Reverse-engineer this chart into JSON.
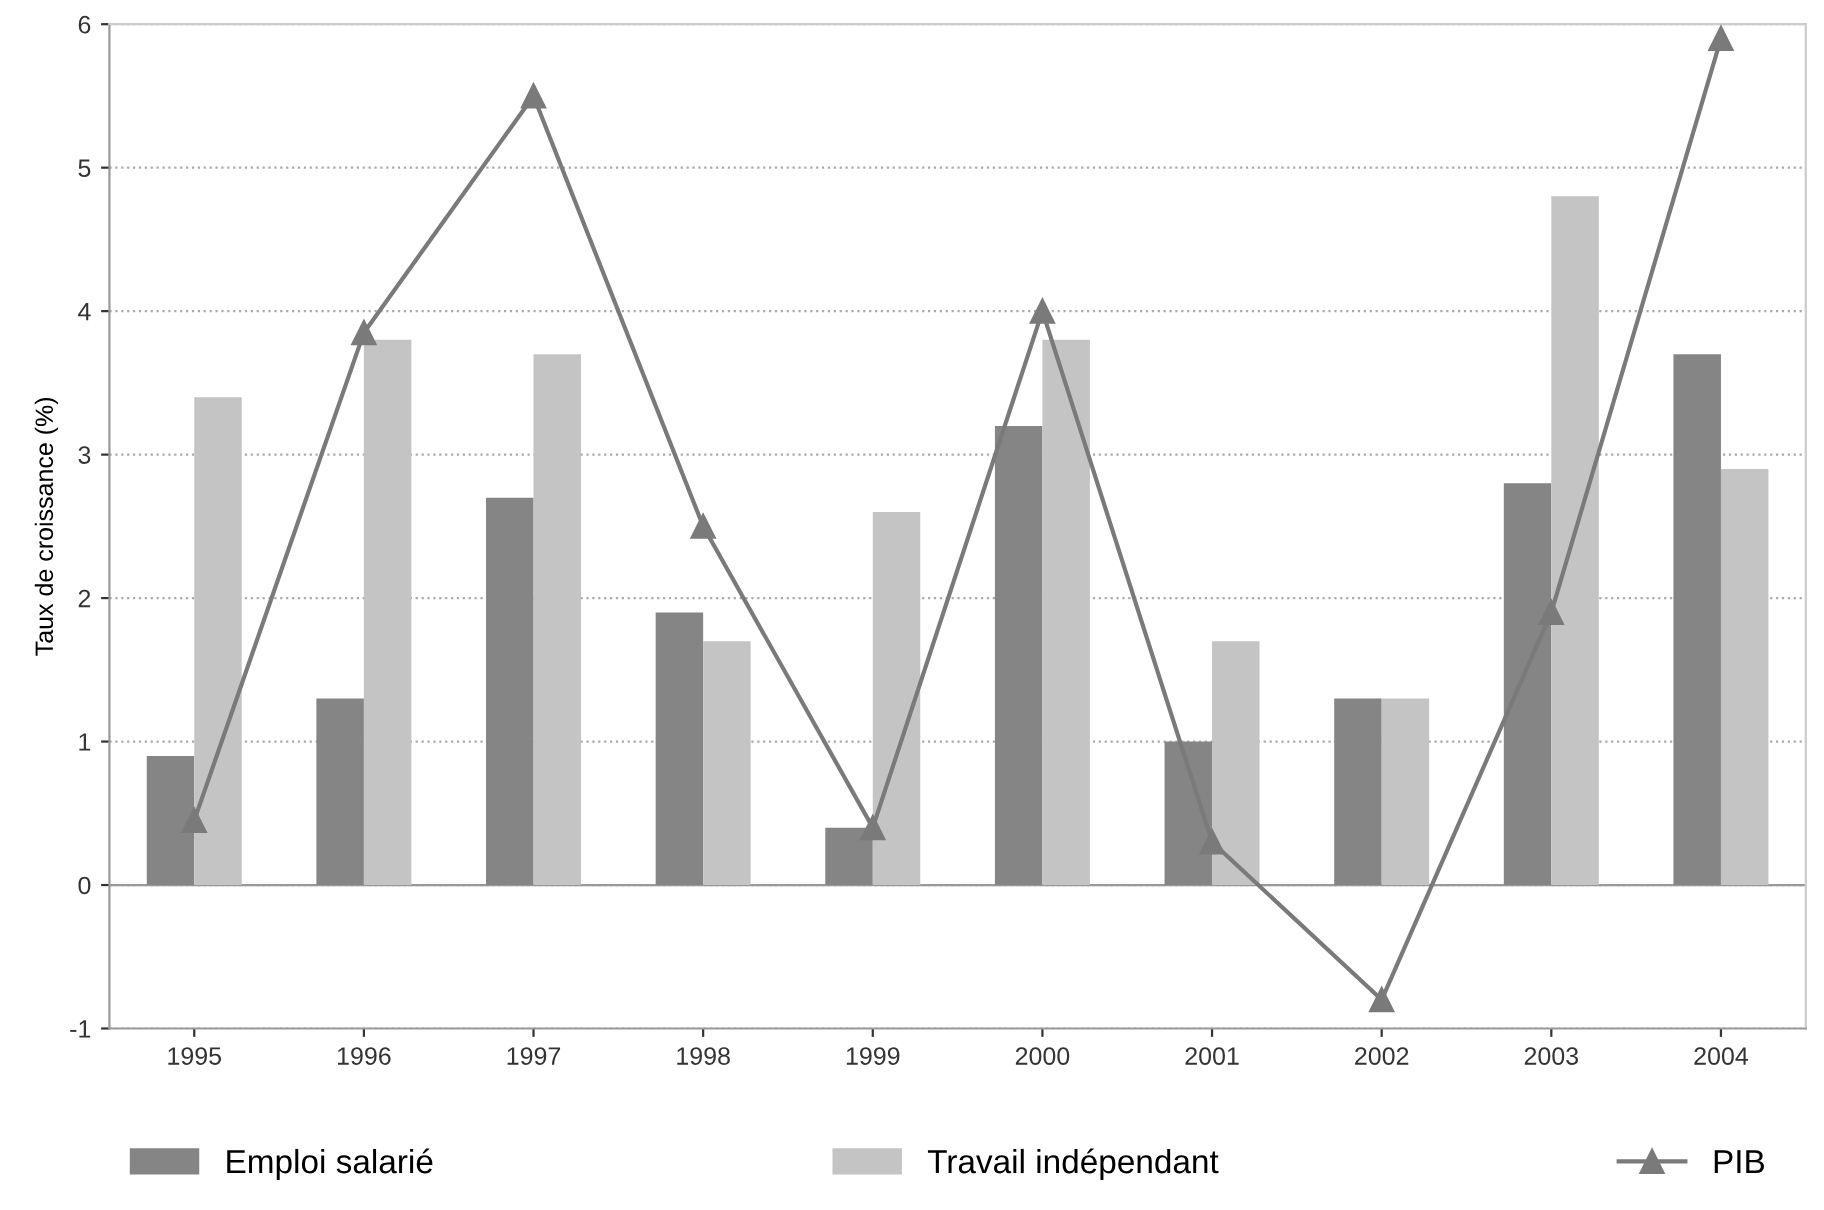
{
  "chart_data": {
    "type": "bar",
    "ylabel": "Taux de croissance (%)",
    "categories": [
      "1995",
      "1996",
      "1997",
      "1998",
      "1999",
      "2000",
      "2001",
      "2002",
      "2003",
      "2004"
    ],
    "series": [
      {
        "name": "Emploi salarié",
        "color": "#858585",
        "values": [
          0.9,
          1.3,
          2.7,
          1.9,
          0.4,
          3.2,
          1.0,
          1.3,
          2.8,
          3.7
        ]
      },
      {
        "name": "Travail indépendant",
        "color": "#c4c4c4",
        "values": [
          3.4,
          3.8,
          3.7,
          1.7,
          2.6,
          3.8,
          1.7,
          1.3,
          4.8,
          2.9
        ]
      },
      {
        "name": "PIB",
        "type": "line",
        "color": "#7a7a7a",
        "marker": "triangle",
        "values": [
          0.45,
          3.85,
          5.5,
          2.5,
          0.4,
          4.0,
          0.3,
          -0.8,
          1.9,
          5.9
        ]
      }
    ],
    "ylim": [
      -1,
      6
    ],
    "yticks": [
      -1,
      0,
      1,
      2,
      3,
      4,
      5,
      6
    ],
    "grid": "y",
    "legend": "bottom"
  }
}
